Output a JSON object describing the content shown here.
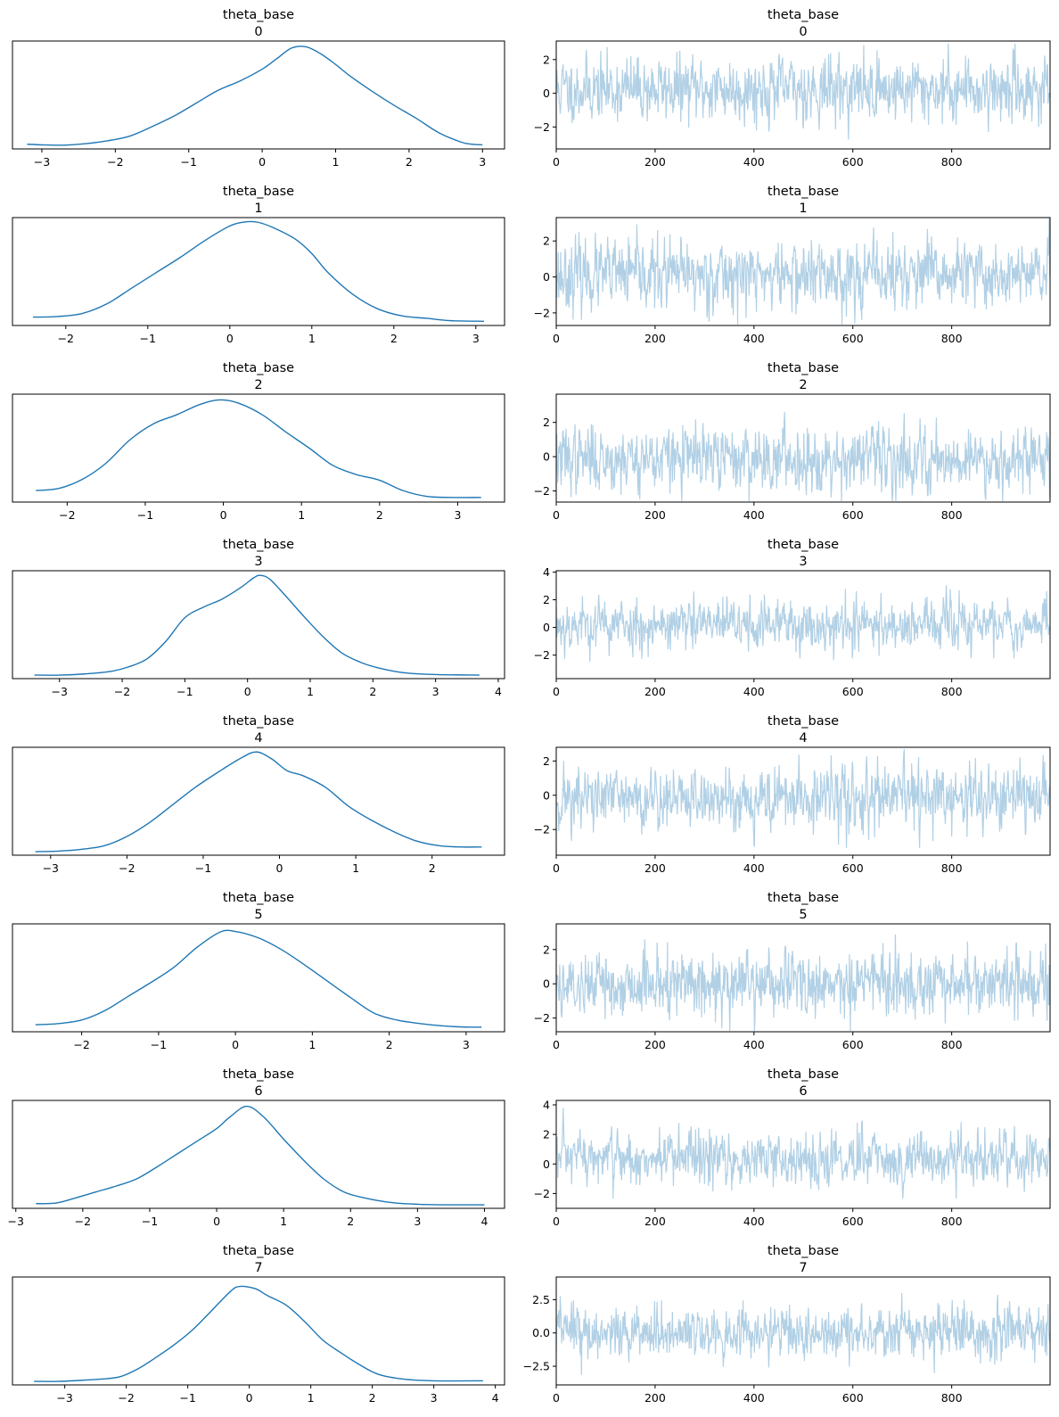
{
  "chart_data": [
    {
      "type": "line",
      "kind": "kde",
      "title_line1": "theta_base",
      "title_line2": "0",
      "x": [
        -3.2,
        -3.0,
        -2.7,
        -2.4,
        -2.1,
        -1.8,
        -1.5,
        -1.2,
        -0.9,
        -0.6,
        -0.3,
        0.0,
        0.2,
        0.4,
        0.6,
        0.8,
        1.0,
        1.2,
        1.5,
        1.8,
        2.1,
        2.4,
        2.7,
        2.85,
        3.0
      ],
      "y": [
        0.02,
        0.015,
        0.012,
        0.025,
        0.05,
        0.09,
        0.17,
        0.26,
        0.37,
        0.48,
        0.56,
        0.66,
        0.75,
        0.84,
        0.85,
        0.79,
        0.7,
        0.6,
        0.47,
        0.35,
        0.24,
        0.12,
        0.04,
        0.02,
        0.015
      ],
      "xlim": [
        -3.4,
        3.3
      ],
      "ylim": [
        -0.02,
        0.9
      ],
      "xticks": [
        -3,
        -2,
        -1,
        0,
        1,
        2,
        3
      ]
    },
    {
      "type": "line",
      "kind": "trace",
      "title_line1": "theta_base",
      "title_line2": "0",
      "n": 1000,
      "seed": 11,
      "std": 0.95,
      "mean": 0.25,
      "ar": 0.25,
      "xlim": [
        0,
        999
      ],
      "ylim": [
        -3.3,
        3.1
      ],
      "xticks": [
        0,
        200,
        400,
        600,
        800
      ],
      "yticks": [
        -2,
        0,
        2
      ]
    },
    {
      "type": "line",
      "kind": "kde",
      "title_line1": "theta_base",
      "title_line2": "1",
      "x": [
        -2.4,
        -2.1,
        -1.8,
        -1.5,
        -1.2,
        -0.9,
        -0.6,
        -0.3,
        0.0,
        0.2,
        0.35,
        0.55,
        0.8,
        1.0,
        1.2,
        1.5,
        1.8,
        2.1,
        2.4,
        2.7,
        3.1
      ],
      "y": [
        0.05,
        0.055,
        0.08,
        0.16,
        0.29,
        0.42,
        0.55,
        0.69,
        0.81,
        0.845,
        0.84,
        0.79,
        0.7,
        0.58,
        0.42,
        0.24,
        0.12,
        0.06,
        0.04,
        0.02,
        0.015
      ],
      "xlim": [
        -2.65,
        3.35
      ],
      "ylim": [
        -0.02,
        0.88
      ],
      "xticks": [
        -2,
        -1,
        0,
        1,
        2,
        3
      ]
    },
    {
      "type": "line",
      "kind": "trace",
      "title_line1": "theta_base",
      "title_line2": "1",
      "n": 1000,
      "seed": 23,
      "std": 0.95,
      "mean": 0.1,
      "ar": 0.25,
      "xlim": [
        0,
        999
      ],
      "ylim": [
        -2.7,
        3.3
      ],
      "xticks": [
        0,
        200,
        400,
        600,
        800
      ],
      "yticks": [
        -2,
        0,
        2
      ]
    },
    {
      "type": "line",
      "kind": "kde",
      "title_line1": "theta_base",
      "title_line2": "2",
      "x": [
        -2.4,
        -2.1,
        -1.8,
        -1.5,
        -1.2,
        -0.9,
        -0.6,
        -0.3,
        -0.05,
        0.2,
        0.5,
        0.8,
        1.1,
        1.4,
        1.7,
        2.0,
        2.3,
        2.6,
        2.9,
        3.3
      ],
      "y": [
        0.08,
        0.1,
        0.18,
        0.32,
        0.52,
        0.66,
        0.74,
        0.83,
        0.87,
        0.84,
        0.74,
        0.59,
        0.45,
        0.3,
        0.22,
        0.17,
        0.08,
        0.03,
        0.02,
        0.02
      ],
      "xlim": [
        -2.7,
        3.6
      ],
      "ylim": [
        -0.02,
        0.92
      ],
      "xticks": [
        -2,
        -1,
        0,
        1,
        2,
        3
      ]
    },
    {
      "type": "line",
      "kind": "trace",
      "title_line1": "theta_base",
      "title_line2": "2",
      "n": 1000,
      "seed": 37,
      "std": 0.95,
      "mean": -0.1,
      "ar": 0.3,
      "xlim": [
        0,
        999
      ],
      "ylim": [
        -2.65,
        3.65
      ],
      "xticks": [
        0,
        200,
        400,
        600,
        800
      ],
      "yticks": [
        -2,
        0,
        2
      ]
    },
    {
      "type": "line",
      "kind": "kde",
      "title_line1": "theta_base",
      "title_line2": "3",
      "x": [
        -3.4,
        -3.0,
        -2.6,
        -2.2,
        -1.9,
        -1.6,
        -1.3,
        -1.0,
        -0.7,
        -0.4,
        -0.1,
        0.1,
        0.2,
        0.35,
        0.6,
        0.9,
        1.2,
        1.5,
        1.8,
        2.1,
        2.5,
        3.0,
        3.7
      ],
      "y": [
        0.01,
        0.01,
        0.02,
        0.04,
        0.08,
        0.15,
        0.3,
        0.5,
        0.59,
        0.66,
        0.76,
        0.84,
        0.86,
        0.83,
        0.69,
        0.51,
        0.34,
        0.2,
        0.12,
        0.07,
        0.03,
        0.015,
        0.01
      ],
      "xlim": [
        -3.75,
        4.1
      ],
      "ylim": [
        -0.02,
        0.9
      ],
      "xticks": [
        -3,
        -2,
        -1,
        0,
        1,
        2,
        3,
        4
      ]
    },
    {
      "type": "line",
      "kind": "trace",
      "title_line1": "theta_base",
      "title_line2": "3",
      "n": 1000,
      "seed": 53,
      "std": 0.95,
      "mean": 0.2,
      "ar": 0.3,
      "xlim": [
        0,
        999
      ],
      "ylim": [
        -3.7,
        4.1
      ],
      "xticks": [
        0,
        200,
        400,
        600,
        800
      ],
      "yticks": [
        -2,
        0,
        2,
        4
      ]
    },
    {
      "type": "line",
      "kind": "kde",
      "title_line1": "theta_base",
      "title_line2": "4",
      "x": [
        -3.2,
        -2.9,
        -2.6,
        -2.3,
        -2.0,
        -1.7,
        -1.4,
        -1.1,
        -0.8,
        -0.5,
        -0.3,
        -0.1,
        0.1,
        0.3,
        0.6,
        0.9,
        1.2,
        1.5,
        1.8,
        2.1,
        2.4,
        2.65
      ],
      "y": [
        0.01,
        0.015,
        0.03,
        0.06,
        0.14,
        0.26,
        0.41,
        0.56,
        0.69,
        0.81,
        0.86,
        0.8,
        0.7,
        0.66,
        0.56,
        0.4,
        0.28,
        0.18,
        0.1,
        0.06,
        0.05,
        0.05
      ],
      "xlim": [
        -3.5,
        2.95
      ],
      "ylim": [
        -0.02,
        0.9
      ],
      "xticks": [
        -3,
        -2,
        -1,
        0,
        1,
        2
      ]
    },
    {
      "type": "line",
      "kind": "trace",
      "title_line1": "theta_base",
      "title_line2": "4",
      "n": 1000,
      "seed": 71,
      "std": 0.95,
      "mean": -0.2,
      "ar": 0.3,
      "xlim": [
        0,
        999
      ],
      "ylim": [
        -3.5,
        2.8
      ],
      "xticks": [
        0,
        200,
        400,
        600,
        800
      ],
      "yticks": [
        -2,
        0,
        2
      ]
    },
    {
      "type": "line",
      "kind": "kde",
      "title_line1": "theta_base",
      "title_line2": "5",
      "x": [
        -2.6,
        -2.3,
        -2.0,
        -1.7,
        -1.4,
        -1.1,
        -0.8,
        -0.5,
        -0.2,
        0.0,
        0.3,
        0.6,
        0.9,
        1.2,
        1.5,
        1.8,
        2.1,
        2.4,
        2.7,
        3.0,
        3.2
      ],
      "y": [
        0.04,
        0.05,
        0.08,
        0.16,
        0.28,
        0.4,
        0.53,
        0.7,
        0.83,
        0.835,
        0.78,
        0.68,
        0.55,
        0.41,
        0.27,
        0.14,
        0.08,
        0.05,
        0.03,
        0.02,
        0.02
      ],
      "xlim": [
        -2.9,
        3.5
      ],
      "ylim": [
        -0.02,
        0.9
      ],
      "xticks": [
        -2,
        -1,
        0,
        1,
        2,
        3
      ]
    },
    {
      "type": "line",
      "kind": "trace",
      "title_line1": "theta_base",
      "title_line2": "5",
      "n": 1000,
      "seed": 89,
      "std": 0.95,
      "mean": 0.0,
      "ar": 0.25,
      "xlim": [
        0,
        999
      ],
      "ylim": [
        -2.8,
        3.5
      ],
      "xticks": [
        0,
        200,
        400,
        600,
        800
      ],
      "yticks": [
        -2,
        0,
        2
      ]
    },
    {
      "type": "line",
      "kind": "kde",
      "title_line1": "theta_base",
      "title_line2": "6",
      "x": [
        -2.7,
        -2.4,
        -2.1,
        -1.8,
        -1.5,
        -1.2,
        -0.9,
        -0.6,
        -0.3,
        0.0,
        0.2,
        0.45,
        0.7,
        1.0,
        1.3,
        1.6,
        1.9,
        2.2,
        2.6,
        3.0,
        3.5,
        4.0
      ],
      "y": [
        0.02,
        0.025,
        0.07,
        0.12,
        0.17,
        0.23,
        0.33,
        0.44,
        0.55,
        0.66,
        0.76,
        0.85,
        0.76,
        0.57,
        0.39,
        0.23,
        0.12,
        0.07,
        0.03,
        0.015,
        0.01,
        0.01
      ],
      "xlim": [
        -3.05,
        4.3
      ],
      "ylim": [
        -0.02,
        0.9
      ],
      "xticks": [
        -3,
        -2,
        -1,
        0,
        1,
        2,
        3,
        4
      ]
    },
    {
      "type": "line",
      "kind": "trace",
      "title_line1": "theta_base",
      "title_line2": "6",
      "n": 1000,
      "seed": 97,
      "std": 0.95,
      "mean": 0.35,
      "ar": 0.3,
      "xlim": [
        0,
        999
      ],
      "ylim": [
        -3.0,
        4.3
      ],
      "xticks": [
        0,
        200,
        400,
        600,
        800
      ],
      "yticks": [
        -2,
        0,
        2,
        4
      ]
    },
    {
      "type": "line",
      "kind": "kde",
      "title_line1": "theta_base",
      "title_line2": "7",
      "x": [
        -3.5,
        -3.1,
        -2.7,
        -2.4,
        -2.1,
        -1.8,
        -1.5,
        -1.2,
        -0.9,
        -0.6,
        -0.3,
        -0.15,
        0.1,
        0.3,
        0.6,
        0.9,
        1.2,
        1.5,
        1.8,
        2.1,
        2.5,
        3.0,
        3.8
      ],
      "y": [
        0.01,
        0.01,
        0.02,
        0.03,
        0.05,
        0.12,
        0.22,
        0.33,
        0.46,
        0.62,
        0.78,
        0.82,
        0.8,
        0.74,
        0.66,
        0.52,
        0.36,
        0.25,
        0.15,
        0.07,
        0.03,
        0.015,
        0.015
      ],
      "xlim": [
        -3.85,
        4.15
      ],
      "ylim": [
        -0.02,
        0.9
      ],
      "xticks": [
        -3,
        -2,
        -1,
        0,
        1,
        2,
        3,
        4
      ]
    },
    {
      "type": "line",
      "kind": "trace",
      "title_line1": "theta_base",
      "title_line2": "7",
      "n": 1000,
      "seed": 113,
      "std": 0.95,
      "mean": 0.05,
      "ar": 0.25,
      "xlim": [
        0,
        999
      ],
      "ylim": [
        -3.9,
        4.2
      ],
      "xticks": [
        0,
        200,
        400,
        600,
        800
      ],
      "yticks": [
        -2.5,
        0.0,
        2.5
      ],
      "ytick_labels": [
        "−2.5",
        "0.0",
        "2.5"
      ]
    }
  ],
  "colors": {
    "kde_line": "#1f77b4",
    "trace_line": "#1f77b4",
    "trace_alpha": 0.35,
    "axes": "#000000"
  }
}
